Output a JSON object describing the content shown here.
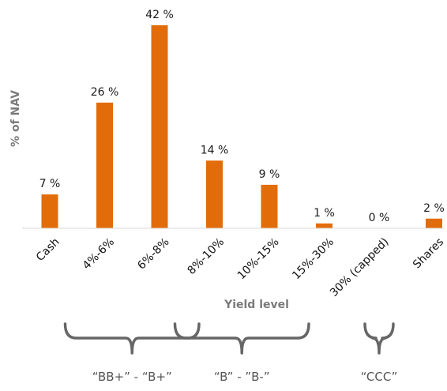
{
  "chart_data": {
    "type": "bar",
    "categories": [
      "Cash",
      "4%-6%",
      "6%-8%",
      "8%-10%",
      "10%-15%",
      "15%-30%",
      "30% (capped)",
      "Shares"
    ],
    "values": [
      7,
      26,
      42,
      14,
      9,
      1,
      0,
      2
    ],
    "value_labels": [
      "7 %",
      "26 %",
      "42 %",
      "14 %",
      "9 %",
      "1 %",
      "0 %",
      "2 %"
    ],
    "title": "",
    "xlabel": "Yield level",
    "ylabel": "% of NAV",
    "ylim": [
      0,
      42
    ],
    "grid": false,
    "legend": "none",
    "bar_color": "#E36C0A",
    "groups": [
      {
        "label": "“BB+” - “B+”",
        "categories": [
          "4%-6%",
          "6%-8%"
        ]
      },
      {
        "label": "“B” - ”B-”",
        "categories": [
          "8%-10%",
          "10%-15%"
        ]
      },
      {
        "label": "“CCC”",
        "categories": [
          "30% (capped)"
        ]
      }
    ]
  }
}
